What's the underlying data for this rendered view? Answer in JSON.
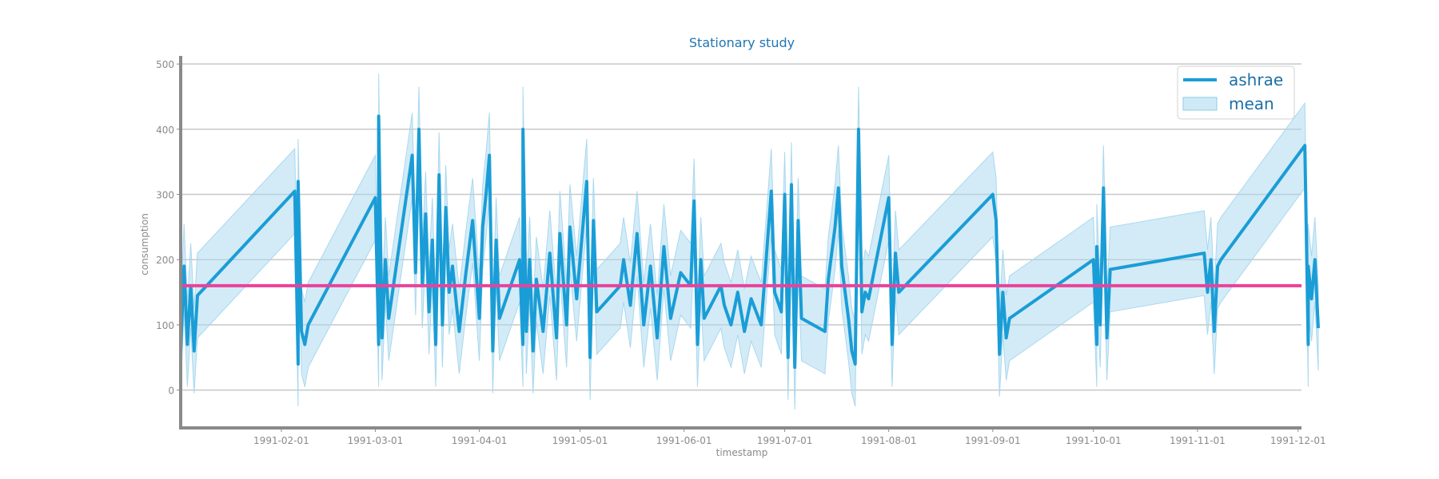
{
  "chart_data": {
    "type": "line",
    "title": "Stationary study",
    "xlabel": "timestamp",
    "ylabel": "consumption",
    "ylim": [
      -58,
      510
    ],
    "xlim": [
      "1991-01-02",
      "1991-12-02"
    ],
    "x_tick_labels": [
      "1991-02-01",
      "1991-03-01",
      "1991-04-01",
      "1991-05-01",
      "1991-06-01",
      "1991-07-01",
      "1991-08-01",
      "1991-09-01",
      "1991-10-01",
      "1991-11-01",
      "1991-12-01"
    ],
    "y_ticks": [
      0,
      100,
      200,
      300,
      400,
      500
    ],
    "grid": "horizontal",
    "legend_position": "top-right",
    "colors": {
      "line": "#1a9dd6",
      "band": "#a8d8ef",
      "mean_line": "#e8439a",
      "axis": "#8a8a8a",
      "grid": "#c8c8c8"
    },
    "mean_value": 160,
    "band_halfwidth": 65,
    "series": [
      {
        "name": "ashrae",
        "points": [
          [
            "1991-01-02",
            60
          ],
          [
            "1991-01-03",
            190
          ],
          [
            "1991-01-04",
            70
          ],
          [
            "1991-01-05",
            160
          ],
          [
            "1991-01-06",
            60
          ],
          [
            "1991-01-07",
            145
          ],
          [
            "1991-02-05",
            305
          ],
          [
            "1991-02-06",
            40
          ],
          [
            "1991-02-06",
            320
          ],
          [
            "1991-02-07",
            90
          ],
          [
            "1991-02-08",
            70
          ],
          [
            "1991-02-09",
            100
          ],
          [
            "1991-03-01",
            295
          ],
          [
            "1991-03-02",
            70
          ],
          [
            "1991-03-02",
            420
          ],
          [
            "1991-03-03",
            80
          ],
          [
            "1991-03-04",
            200
          ],
          [
            "1991-03-05",
            110
          ],
          [
            "1991-03-12",
            360
          ],
          [
            "1991-03-13",
            180
          ],
          [
            "1991-03-14",
            400
          ],
          [
            "1991-03-15",
            160
          ],
          [
            "1991-03-16",
            270
          ],
          [
            "1991-03-17",
            120
          ],
          [
            "1991-03-18",
            230
          ],
          [
            "1991-03-19",
            70
          ],
          [
            "1991-03-20",
            330
          ],
          [
            "1991-03-21",
            100
          ],
          [
            "1991-03-22",
            280
          ],
          [
            "1991-03-23",
            150
          ],
          [
            "1991-03-24",
            190
          ],
          [
            "1991-03-26",
            90
          ],
          [
            "1991-03-28",
            180
          ],
          [
            "1991-03-30",
            260
          ],
          [
            "1991-04-01",
            110
          ],
          [
            "1991-04-02",
            250
          ],
          [
            "1991-04-03",
            300
          ],
          [
            "1991-04-04",
            360
          ],
          [
            "1991-04-05",
            60
          ],
          [
            "1991-04-06",
            230
          ],
          [
            "1991-04-07",
            110
          ],
          [
            "1991-04-13",
            200
          ],
          [
            "1991-04-14",
            70
          ],
          [
            "1991-04-14",
            400
          ],
          [
            "1991-04-15",
            90
          ],
          [
            "1991-04-16",
            200
          ],
          [
            "1991-04-17",
            60
          ],
          [
            "1991-04-18",
            170
          ],
          [
            "1991-04-20",
            90
          ],
          [
            "1991-04-22",
            210
          ],
          [
            "1991-04-24",
            80
          ],
          [
            "1991-04-25",
            240
          ],
          [
            "1991-04-27",
            100
          ],
          [
            "1991-04-28",
            250
          ],
          [
            "1991-04-30",
            140
          ],
          [
            "1991-05-03",
            320
          ],
          [
            "1991-05-04",
            50
          ],
          [
            "1991-05-05",
            260
          ],
          [
            "1991-05-06",
            120
          ],
          [
            "1991-05-13",
            160
          ],
          [
            "1991-05-14",
            200
          ],
          [
            "1991-05-16",
            130
          ],
          [
            "1991-05-18",
            240
          ],
          [
            "1991-05-20",
            100
          ],
          [
            "1991-05-22",
            190
          ],
          [
            "1991-05-24",
            80
          ],
          [
            "1991-05-26",
            220
          ],
          [
            "1991-05-28",
            110
          ],
          [
            "1991-05-31",
            180
          ],
          [
            "1991-06-03",
            160
          ],
          [
            "1991-06-04",
            290
          ],
          [
            "1991-06-05",
            70
          ],
          [
            "1991-06-06",
            200
          ],
          [
            "1991-06-07",
            110
          ],
          [
            "1991-06-12",
            160
          ],
          [
            "1991-06-13",
            130
          ],
          [
            "1991-06-15",
            100
          ],
          [
            "1991-06-17",
            150
          ],
          [
            "1991-06-19",
            90
          ],
          [
            "1991-06-21",
            140
          ],
          [
            "1991-06-24",
            100
          ],
          [
            "1991-06-27",
            305
          ],
          [
            "1991-06-28",
            150
          ],
          [
            "1991-06-30",
            120
          ],
          [
            "1991-07-01",
            300
          ],
          [
            "1991-07-02",
            50
          ],
          [
            "1991-07-03",
            315
          ],
          [
            "1991-07-04",
            35
          ],
          [
            "1991-07-05",
            260
          ],
          [
            "1991-07-06",
            110
          ],
          [
            "1991-07-13",
            90
          ],
          [
            "1991-07-14",
            170
          ],
          [
            "1991-07-16",
            250
          ],
          [
            "1991-07-17",
            310
          ],
          [
            "1991-07-18",
            190
          ],
          [
            "1991-07-19",
            150
          ],
          [
            "1991-07-20",
            110
          ],
          [
            "1991-07-21",
            60
          ],
          [
            "1991-07-22",
            40
          ],
          [
            "1991-07-23",
            400
          ],
          [
            "1991-07-24",
            120
          ],
          [
            "1991-07-25",
            150
          ],
          [
            "1991-07-26",
            140
          ],
          [
            "1991-08-01",
            295
          ],
          [
            "1991-08-02",
            70
          ],
          [
            "1991-08-03",
            210
          ],
          [
            "1991-08-04",
            150
          ],
          [
            "1991-09-01",
            300
          ],
          [
            "1991-09-02",
            260
          ],
          [
            "1991-09-03",
            55
          ],
          [
            "1991-09-04",
            150
          ],
          [
            "1991-09-05",
            80
          ],
          [
            "1991-09-06",
            110
          ],
          [
            "1991-10-01",
            200
          ],
          [
            "1991-10-02",
            70
          ],
          [
            "1991-10-02",
            220
          ],
          [
            "1991-10-03",
            100
          ],
          [
            "1991-10-04",
            310
          ],
          [
            "1991-10-05",
            80
          ],
          [
            "1991-10-06",
            185
          ],
          [
            "1991-11-03",
            210
          ],
          [
            "1991-11-04",
            150
          ],
          [
            "1991-11-05",
            200
          ],
          [
            "1991-11-06",
            90
          ],
          [
            "1991-11-07",
            190
          ],
          [
            "1991-11-08",
            200
          ],
          [
            "1991-12-03",
            375
          ],
          [
            "1991-12-04",
            70
          ],
          [
            "1991-12-04",
            190
          ],
          [
            "1991-12-05",
            140
          ],
          [
            "1991-12-06",
            200
          ],
          [
            "1991-12-07",
            95
          ]
        ]
      },
      {
        "name": "mean",
        "kind": "band"
      }
    ]
  }
}
